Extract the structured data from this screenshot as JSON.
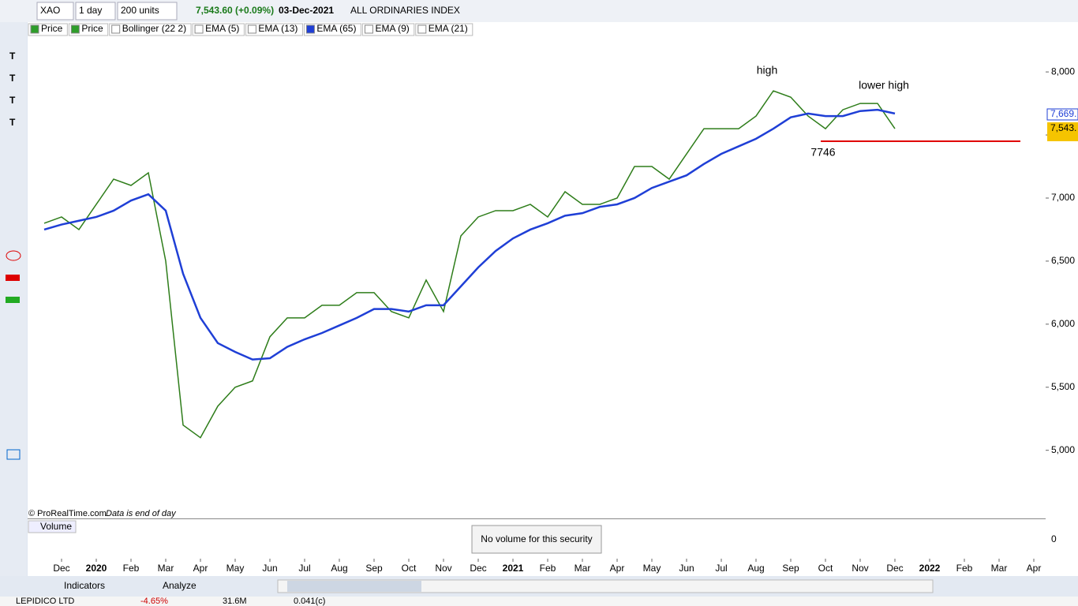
{
  "toolbar": {
    "symbol": "XAO",
    "period": "1 day",
    "units": "200 units",
    "quote": "7,543.60 (+0.09%)",
    "date": "03-Dec-2021",
    "name": "ALL ORDINARIES INDEX"
  },
  "indicators": [
    "Price",
    "Price",
    "Bollinger (22 2)",
    "EMA (5)",
    "EMA (13)",
    "EMA (65)",
    "EMA (9)",
    "EMA (21)"
  ],
  "chart_data": {
    "type": "line",
    "categories": [
      null,
      "Dec",
      null,
      "2020",
      null,
      "Feb",
      null,
      "Mar",
      null,
      "Apr",
      null,
      "May",
      null,
      "Jun",
      null,
      "Jul",
      null,
      "Aug",
      null,
      "Sep",
      null,
      "Oct",
      null,
      "Nov",
      null,
      "Dec",
      null,
      "2021",
      null,
      "Feb",
      null,
      "Mar",
      null,
      "Apr",
      null,
      "May",
      null,
      "Jun",
      null,
      "Jul",
      null,
      "Aug",
      null,
      "Sep",
      null,
      "Oct",
      null,
      "Nov",
      null,
      "Dec",
      null,
      "2022",
      null,
      "Feb",
      null,
      "Mar",
      null,
      "Apr"
    ],
    "series": [
      {
        "name": "Price",
        "color": "#2e7d1a",
        "values": [
          6800,
          6850,
          6750,
          6950,
          7150,
          7100,
          7200,
          6500,
          5200,
          5100,
          5350,
          5500,
          5550,
          5900,
          6050,
          6050,
          6150,
          6150,
          6250,
          6250,
          6100,
          6050,
          6350,
          6100,
          6700,
          6850,
          6900,
          6900,
          6950,
          6850,
          7050,
          6950,
          6950,
          7000,
          7250,
          7250,
          7150,
          7350,
          7550,
          7550,
          7550,
          7650,
          7850,
          7800,
          7650,
          7550,
          7700,
          7750,
          7750,
          7550,
          null,
          null,
          null,
          null,
          null,
          null,
          null,
          null
        ]
      },
      {
        "name": "EMA (65)",
        "color": "#1f3fd6",
        "values": [
          6750,
          6790,
          6820,
          6850,
          6900,
          6980,
          7030,
          6900,
          6400,
          6050,
          5850,
          5780,
          5720,
          5730,
          5820,
          5880,
          5930,
          5990,
          6050,
          6120,
          6120,
          6100,
          6150,
          6150,
          6300,
          6450,
          6580,
          6680,
          6750,
          6800,
          6860,
          6880,
          6930,
          6950,
          7000,
          7080,
          7130,
          7180,
          7270,
          7350,
          7410,
          7470,
          7550,
          7640,
          7670,
          7650,
          7650,
          7690,
          7700,
          7670,
          null,
          null,
          null,
          null,
          null,
          null,
          null,
          null
        ]
      }
    ],
    "ylim": [
      4460,
      8395
    ],
    "yticks": [
      {
        "value": 5000,
        "label": "5,000"
      },
      {
        "value": 5500,
        "label": "5,500"
      },
      {
        "value": 6000,
        "label": "6,000"
      },
      {
        "value": 6500,
        "label": "6,500"
      },
      {
        "value": 7000,
        "label": "7,000"
      },
      {
        "value": 7500,
        "label": "7,500"
      },
      {
        "value": 8000,
        "label": "8,000"
      }
    ],
    "support_line": {
      "value": 7450,
      "color": "#e00000"
    },
    "annotations": [
      "high",
      "lower high",
      "7746"
    ],
    "last_labels": [
      "7,669.",
      "7,543."
    ],
    "footer": [
      "© ProRealTime.com",
      "Data is end of day"
    ]
  },
  "volume": {
    "title": "Volume",
    "message": "No volume for this security",
    "tick": "0"
  },
  "bottom_toolbar": [
    "Indicators",
    "Analyze"
  ],
  "ticker": [
    "LEPIDICO LTD",
    "-4.65%",
    "31.6M",
    "0.041(c)"
  ]
}
